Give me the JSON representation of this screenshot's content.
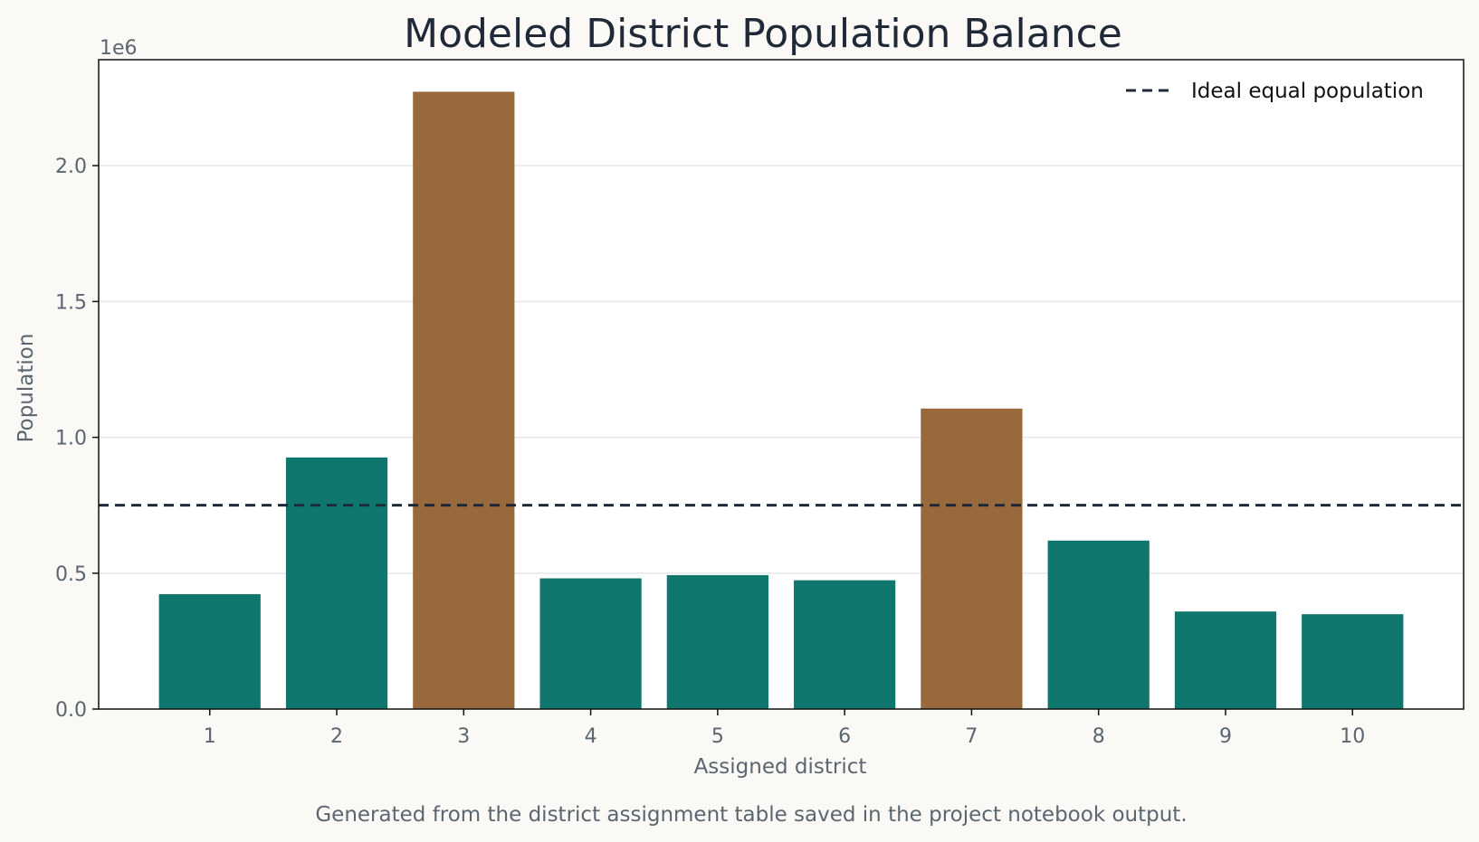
{
  "chart_data": {
    "type": "bar",
    "title": "Modeled District Population Balance",
    "xlabel": "Assigned district",
    "ylabel": "Population",
    "y_offset_label": "1e6",
    "caption": "Generated from the district assignment table saved in the project notebook output.",
    "categories": [
      "1",
      "2",
      "3",
      "4",
      "5",
      "6",
      "7",
      "8",
      "9",
      "10"
    ],
    "values": [
      423000,
      926000,
      2272000,
      481000,
      493000,
      474000,
      1106000,
      620000,
      359000,
      349000
    ],
    "bar_colors": [
      "#0f766e",
      "#0f766e",
      "#98693c",
      "#0f766e",
      "#0f766e",
      "#0f766e",
      "#98693c",
      "#0f766e",
      "#0f766e",
      "#0f766e"
    ],
    "ylim": [
      0,
      2390000
    ],
    "yticks": [
      0,
      500000,
      1000000,
      1500000,
      2000000
    ],
    "ytick_labels": [
      "0.0",
      "0.5",
      "1.0",
      "1.5",
      "2.0"
    ],
    "grid": true,
    "reference_line": {
      "value": 750000,
      "label": "Ideal equal population",
      "style": "dashed",
      "color": "#1f2937"
    },
    "legend_position": "top-right",
    "colors": {
      "within": "#0f766e",
      "over": "#98693c",
      "grid": "#e5e7eb",
      "axis": "#111111",
      "text": "#5b6670",
      "background": "#faf9f6",
      "plot_background": "#ffffff"
    }
  }
}
